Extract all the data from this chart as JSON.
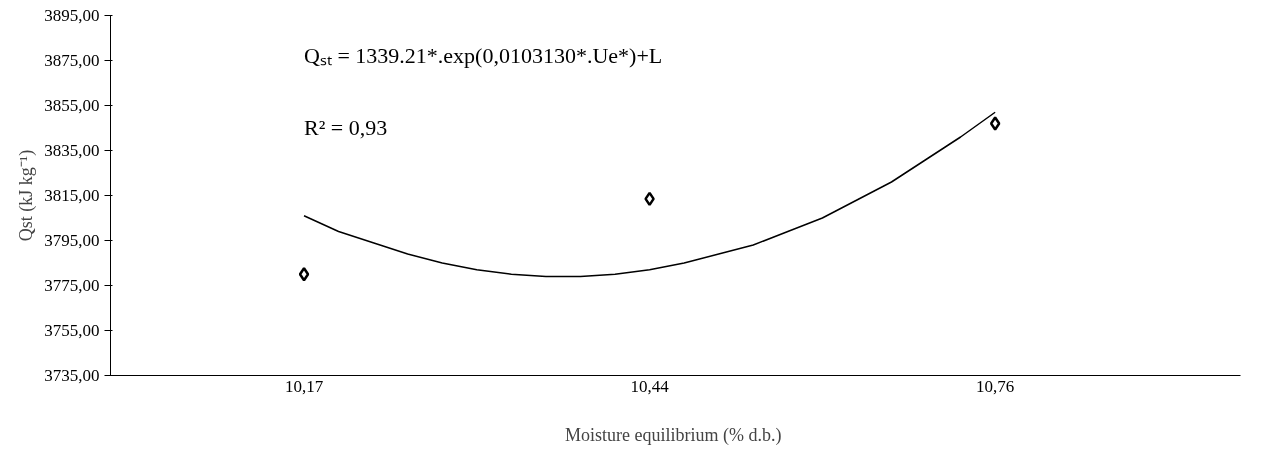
{
  "chart_data": {
    "type": "scatter",
    "xlabel": "Moisture equilibrium  (% d.b.)",
    "ylabel": "Qst (kJ kg⁻¹)",
    "categories": [
      "10,17",
      null,
      null,
      null,
      null,
      null,
      null,
      null,
      null,
      null,
      "10,44",
      null,
      null,
      null,
      null,
      null,
      null,
      null,
      null,
      null,
      "10,76"
    ],
    "series": [
      {
        "color": "#000000",
        "marker": "diamond",
        "values": [
          3780,
          null,
          null,
          null,
          null,
          null,
          null,
          null,
          null,
          null,
          3813.5,
          null,
          null,
          null,
          null,
          null,
          null,
          null,
          null,
          null,
          3847
        ]
      },
      {
        "type": "line",
        "color": "#000000",
        "marker": "none",
        "values": [
          3806,
          3799,
          3794,
          3789,
          3785,
          3782,
          3780,
          3779,
          3779,
          3780,
          3782,
          3785,
          3789,
          3793,
          3799,
          3805,
          3813,
          3821,
          3831,
          3841,
          3852
        ]
      }
    ],
    "ylim": [
      3735,
      3895
    ],
    "yticks": [
      {
        "value": 3735,
        "label": "3735,00"
      },
      {
        "value": 3755,
        "label": "3755,00"
      },
      {
        "value": 3775,
        "label": "3775,00"
      },
      {
        "value": 3795,
        "label": "3795,00"
      },
      {
        "value": 3815,
        "label": "3815,00"
      },
      {
        "value": 3835,
        "label": "3835,00"
      },
      {
        "value": 3855,
        "label": "3855,00"
      },
      {
        "value": 3875,
        "label": "3875,00"
      },
      {
        "value": 3895,
        "label": "3895,00"
      }
    ],
    "annotations": [
      "Qₛₜ = 1339.21*.exp(0,0103130*.Ue*)+L",
      "R² = 0,93"
    ],
    "grid": false
  }
}
